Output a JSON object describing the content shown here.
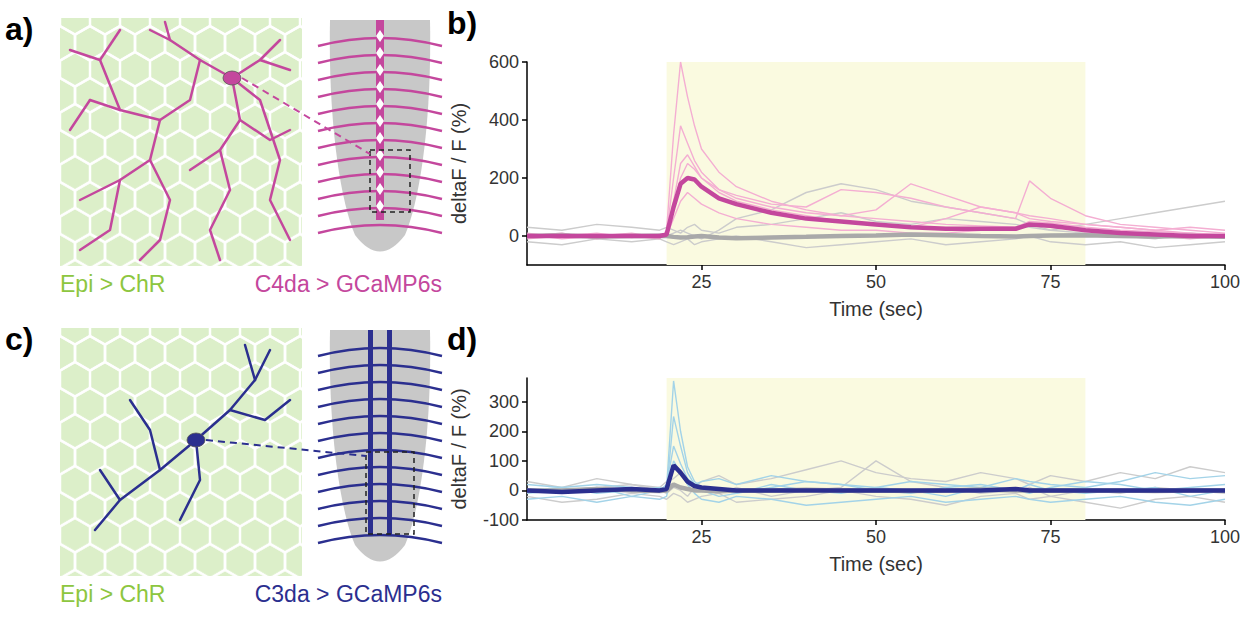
{
  "chart_data": [
    {
      "type": "line",
      "title": "b)",
      "x_label": "Time (sec)",
      "y_label": "deltaF / F (%)",
      "xlim": [
        0,
        100
      ],
      "xticks": [
        25,
        50,
        75,
        100
      ],
      "ylim": [
        -100,
        600
      ],
      "yticks": [
        0,
        200,
        400,
        600
      ],
      "grid": false,
      "shaded": {
        "x": [
          20,
          80
        ],
        "color": "#fafae0"
      },
      "x": [
        0,
        5,
        10,
        15,
        19,
        20,
        21,
        22,
        23,
        24,
        25,
        27.5,
        30,
        35,
        40,
        45,
        50,
        55,
        60,
        65,
        70,
        72,
        75,
        80,
        85,
        90,
        95,
        100
      ],
      "series": [
        {
          "color": "#cccccc",
          "line_style": "thin",
          "values": [
            30,
            20,
            40,
            30,
            20,
            30,
            20,
            10,
            30,
            40,
            20,
            10,
            30,
            40,
            60,
            80,
            50,
            40,
            60,
            50,
            40,
            30,
            20,
            40,
            60,
            80,
            100,
            120
          ]
        },
        {
          "color": "#cccccc",
          "line_style": "thin",
          "values": [
            -20,
            -30,
            -10,
            -20,
            -10,
            -20,
            -30,
            -20,
            -10,
            -30,
            -20,
            -10,
            0,
            -20,
            -40,
            -30,
            -20,
            -10,
            -30,
            -20,
            -10,
            0,
            -20,
            -30,
            -20,
            -40,
            -30,
            -20
          ]
        },
        {
          "color": "#cccccc",
          "line_style": "thin",
          "values": [
            0,
            10,
            -10,
            5,
            -5,
            0,
            10,
            20,
            10,
            0,
            -10,
            20,
            60,
            90,
            150,
            180,
            160,
            120,
            100,
            80,
            60,
            40,
            20,
            10,
            0,
            -10,
            10,
            0
          ]
        },
        {
          "color": "#f4aed2",
          "line_style": "thin",
          "values": [
            10,
            -5,
            5,
            0,
            -10,
            20,
            350,
            600,
            480,
            380,
            300,
            220,
            170,
            120,
            90,
            70,
            60,
            50,
            40,
            35,
            30,
            50,
            45,
            30,
            20,
            15,
            10,
            5
          ]
        },
        {
          "color": "#f4aed2",
          "line_style": "thin",
          "values": [
            0,
            10,
            -10,
            5,
            0,
            10,
            200,
            380,
            320,
            260,
            220,
            160,
            130,
            100,
            80,
            70,
            90,
            180,
            140,
            100,
            80,
            70,
            60,
            40,
            30,
            20,
            10,
            0
          ]
        },
        {
          "color": "#f4aed2",
          "line_style": "thin",
          "values": [
            -10,
            0,
            10,
            -5,
            5,
            0,
            120,
            250,
            280,
            240,
            200,
            160,
            140,
            110,
            100,
            160,
            150,
            130,
            100,
            80,
            60,
            190,
            130,
            70,
            40,
            30,
            20,
            10
          ]
        },
        {
          "color": "#f4aed2",
          "line_style": "thin",
          "values": [
            5,
            -10,
            0,
            10,
            -5,
            0,
            60,
            120,
            150,
            130,
            110,
            80,
            60,
            40,
            30,
            20,
            20,
            10,
            10,
            20,
            30,
            40,
            30,
            20,
            10,
            0,
            -10,
            0
          ]
        },
        {
          "color": "#f4aed2",
          "line_style": "thin",
          "values": [
            0,
            5,
            -5,
            0,
            0,
            5,
            100,
            200,
            250,
            230,
            200,
            150,
            120,
            90,
            70,
            50,
            40,
            30,
            60,
            100,
            80,
            60,
            50,
            40,
            30,
            20,
            30,
            20
          ]
        },
        {
          "color": "#a9a9a9",
          "line_style": "bold",
          "values": [
            0,
            2,
            -2,
            0,
            1,
            0,
            -3,
            -5,
            -4,
            -2,
            0,
            -5,
            -8,
            -5,
            -3,
            0,
            2,
            5,
            3,
            0,
            -2,
            0,
            2,
            3,
            0,
            -2,
            0,
            -3
          ]
        },
        {
          "color": "#c4479d",
          "line_style": "bold",
          "values": [
            0,
            0,
            0,
            0,
            0,
            5,
            100,
            180,
            200,
            195,
            170,
            130,
            110,
            80,
            60,
            50,
            40,
            30,
            25,
            25,
            25,
            40,
            35,
            20,
            10,
            5,
            0,
            0
          ]
        }
      ]
    },
    {
      "type": "line",
      "title": "d)",
      "x_label": "Time (sec)",
      "y_label": "deltaF / F (%)",
      "xlim": [
        0,
        100
      ],
      "xticks": [
        25,
        50,
        75,
        100
      ],
      "ylim": [
        -100,
        380
      ],
      "yticks": [
        -100,
        0,
        100,
        200,
        300
      ],
      "grid": false,
      "shaded": {
        "x": [
          20,
          80
        ],
        "color": "#fafae0"
      },
      "x": [
        0,
        5,
        10,
        15,
        19,
        20,
        21,
        22,
        23,
        24,
        25,
        27.5,
        30,
        35,
        40,
        45,
        50,
        55,
        60,
        65,
        70,
        72,
        75,
        80,
        85,
        90,
        95,
        100
      ],
      "series": [
        {
          "color": "#cccccc",
          "line_style": "thin",
          "values": [
            -20,
            -40,
            -30,
            -10,
            -20,
            -30,
            -10,
            -20,
            -40,
            -30,
            -20,
            -10,
            -40,
            -30,
            -20,
            0,
            -20,
            -30,
            -50,
            -20,
            -10,
            -30,
            -20,
            -40,
            -60,
            -30,
            -20,
            -40
          ]
        },
        {
          "color": "#cccccc",
          "line_style": "thin",
          "values": [
            30,
            10,
            40,
            20,
            10,
            30,
            40,
            60,
            20,
            10,
            30,
            50,
            20,
            40,
            70,
            100,
            60,
            40,
            30,
            60,
            40,
            20,
            50,
            30,
            60,
            40,
            80,
            60
          ]
        },
        {
          "color": "#cccccc",
          "line_style": "thin",
          "values": [
            0,
            -10,
            10,
            20,
            0,
            -10,
            10,
            0,
            -20,
            10,
            0,
            -10,
            10,
            -20,
            0,
            10,
            100,
            30,
            10,
            -10,
            0,
            10,
            -20,
            0,
            -10,
            10,
            0,
            -10
          ]
        },
        {
          "color": "#a3d3e8",
          "line_style": "thin",
          "values": [
            -10,
            0,
            10,
            -20,
            0,
            10,
            370,
            200,
            80,
            30,
            10,
            0,
            -10,
            20,
            0,
            -10,
            10,
            0,
            -20,
            10,
            0,
            20,
            0,
            -10,
            0,
            10,
            -20,
            0
          ]
        },
        {
          "color": "#a3d3e8",
          "line_style": "thin",
          "values": [
            20,
            10,
            -10,
            0,
            10,
            0,
            250,
            150,
            60,
            20,
            0,
            -20,
            -10,
            10,
            30,
            20,
            0,
            -10,
            10,
            20,
            0,
            -10,
            10,
            30,
            20,
            0,
            10,
            20
          ]
        },
        {
          "color": "#a3d3e8",
          "line_style": "thin",
          "values": [
            -30,
            -20,
            -40,
            -20,
            -30,
            -20,
            100,
            60,
            20,
            -10,
            -30,
            -40,
            -20,
            -30,
            -50,
            -40,
            -30,
            -20,
            -40,
            -30,
            -20,
            -30,
            -40,
            -30,
            -20,
            -40,
            -50,
            -30
          ]
        },
        {
          "color": "#a3d3e8",
          "line_style": "thin",
          "values": [
            0,
            10,
            20,
            10,
            0,
            20,
            150,
            90,
            40,
            20,
            30,
            40,
            20,
            50,
            30,
            20,
            10,
            30,
            20,
            10,
            40,
            30,
            20,
            10,
            30,
            60,
            40,
            50
          ]
        },
        {
          "color": "#a9a9a9",
          "line_style": "bold",
          "values": [
            0,
            0,
            5,
            0,
            -2,
            0,
            20,
            10,
            5,
            0,
            0,
            -3,
            0,
            0,
            2,
            0,
            0,
            -2,
            0,
            3,
            0,
            0,
            0,
            0,
            0,
            -2,
            0,
            0
          ]
        },
        {
          "color": "#2b2f8f",
          "line_style": "bold",
          "values": [
            0,
            -5,
            0,
            5,
            0,
            5,
            85,
            60,
            30,
            15,
            10,
            5,
            0,
            0,
            0,
            0,
            0,
            0,
            0,
            0,
            5,
            0,
            0,
            0,
            0,
            0,
            0,
            0
          ]
        }
      ]
    }
  ],
  "diagrams": [
    {
      "letter": "a)",
      "labels": [
        "Epi > ChR",
        "C4da > GCaMP6s"
      ],
      "colors": [
        "#8dc63f",
        "#c4479d"
      ]
    },
    {
      "letter": "c)",
      "labels": [
        "Epi > ChR",
        "C3da > GCaMP6s"
      ],
      "colors": [
        "#8dc63f",
        "#2b2f8f"
      ]
    }
  ]
}
